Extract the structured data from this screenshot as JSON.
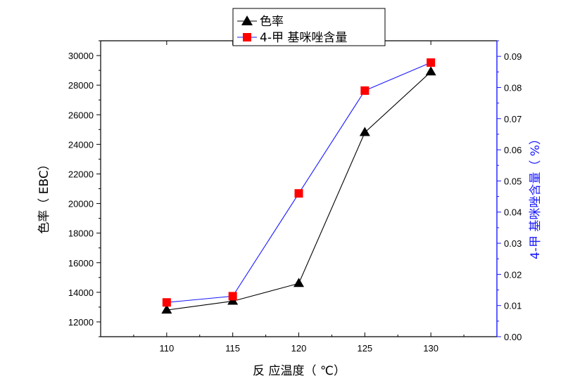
{
  "chart_data": {
    "type": "line",
    "x": [
      110,
      115,
      120,
      125,
      130
    ],
    "xlabel": "反 应温度（ ℃）",
    "xlim": [
      105,
      135
    ],
    "xticks": [
      110,
      115,
      120,
      125,
      130
    ],
    "ylabel_left": "色率（ EBC）",
    "ylim_left": [
      11000,
      31000
    ],
    "yticks_left": [
      12000,
      14000,
      16000,
      18000,
      20000,
      22000,
      24000,
      26000,
      28000,
      30000
    ],
    "ylabel_right": "4-甲 基咪唑含量（ %）",
    "ylim_right": [
      0,
      0.095
    ],
    "yticks_right": [
      "0.00",
      "0.01",
      "0.02",
      "0.03",
      "0.04",
      "0.05",
      "0.06",
      "0.07",
      "0.08",
      "0.09"
    ],
    "legend_position": "top-center",
    "grid": false,
    "series": [
      {
        "name": "色率",
        "axis": "left",
        "marker": "triangle",
        "color": "#000000",
        "marker_color": "#000000",
        "values": [
          12800,
          13400,
          14600,
          24800,
          28900
        ]
      },
      {
        "name": "4-甲 基咪唑含量",
        "axis": "right",
        "marker": "square",
        "color": "#1a1aff",
        "marker_color": "#ff0000",
        "values": [
          0.011,
          0.013,
          0.046,
          0.079,
          0.088
        ]
      }
    ]
  }
}
